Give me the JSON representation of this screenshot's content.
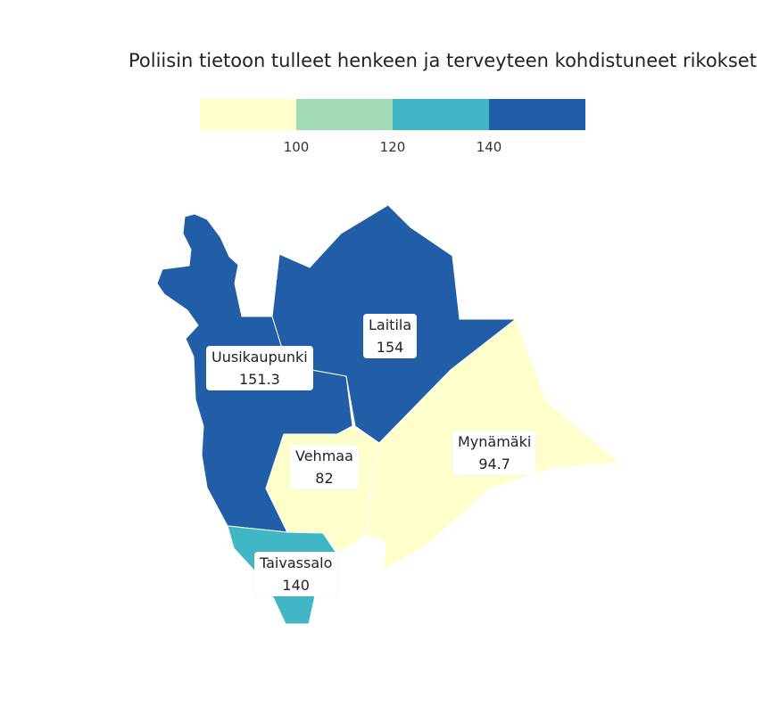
{
  "title": "Poliisin tietoon tulleet henkeen ja terveyteen kohdistuneet rikokset",
  "legend": {
    "colors": [
      "#ffffcc",
      "#a1dab4",
      "#41b6c4",
      "#225ea8"
    ],
    "ticks": [
      "100",
      "120",
      "140"
    ]
  },
  "regions": [
    {
      "name": "Uusikaupunki",
      "value": "151.3",
      "color": "#225ea8"
    },
    {
      "name": "Laitila",
      "value": "154",
      "color": "#225ea8"
    },
    {
      "name": "Vehmaa",
      "value": "82",
      "color": "#ffffcc"
    },
    {
      "name": "Mynämäki",
      "value": "94.7",
      "color": "#ffffcc"
    },
    {
      "name": "Taivassalo",
      "value": "140",
      "color": "#41b6c4"
    }
  ]
}
